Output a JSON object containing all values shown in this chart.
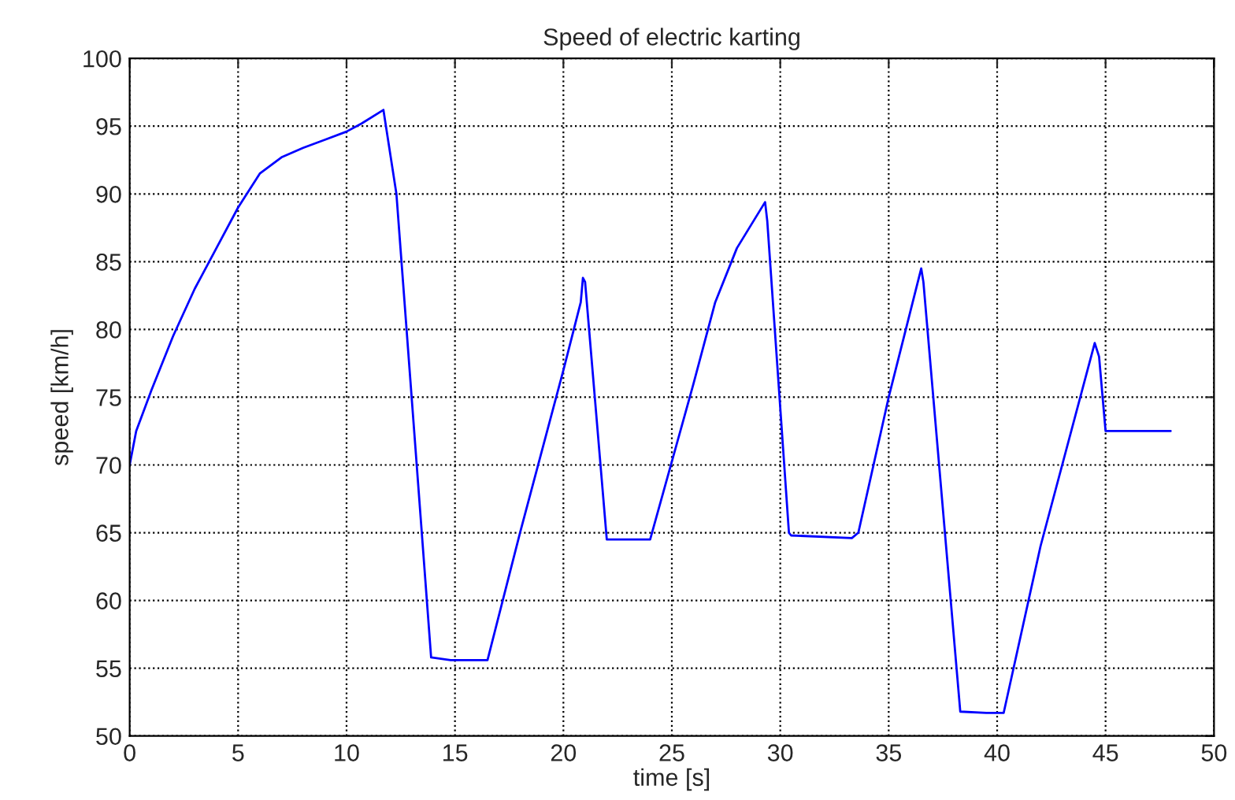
{
  "chart_data": {
    "type": "line",
    "title": "Speed of electric karting",
    "xlabel": "time [s]",
    "ylabel": "speed [km/h]",
    "series": [
      {
        "color": "#0000ff",
        "x": [
          0,
          0.3,
          1,
          2,
          3,
          4,
          5,
          6,
          7,
          8,
          9,
          10,
          10.7,
          11.7,
          12.3,
          13.9,
          14.8,
          16.5,
          18,
          20,
          20.8,
          20.9,
          21.0,
          22,
          24,
          26,
          27,
          28,
          29.3,
          29.4,
          30.4,
          30.5,
          33.3,
          33.6,
          35,
          36.5,
          36.6,
          38.3,
          39.5,
          40.3,
          42,
          44.5,
          44.7,
          45,
          48
        ],
        "values": [
          70,
          72.5,
          75.5,
          79.5,
          83,
          86,
          89,
          91.5,
          92.7,
          93.4,
          94,
          94.6,
          95.2,
          96.2,
          90,
          55.8,
          55.6,
          55.6,
          65,
          77,
          82,
          83.8,
          83.5,
          64.5,
          64.5,
          76,
          82,
          86,
          89.4,
          88,
          65,
          64.8,
          64.6,
          65,
          75,
          84.5,
          83.5,
          51.8,
          51.7,
          51.7,
          64,
          79,
          78,
          72.5,
          72.5
        ]
      }
    ],
    "xlim": [
      0,
      50
    ],
    "xticks": [
      0,
      5,
      10,
      15,
      20,
      25,
      30,
      35,
      40,
      45,
      50
    ],
    "ylim": [
      50,
      100
    ],
    "yticks": [
      50,
      55,
      60,
      65,
      70,
      75,
      80,
      85,
      90,
      95,
      100
    ],
    "grid": true,
    "line_style": "solid",
    "marker": "none"
  }
}
